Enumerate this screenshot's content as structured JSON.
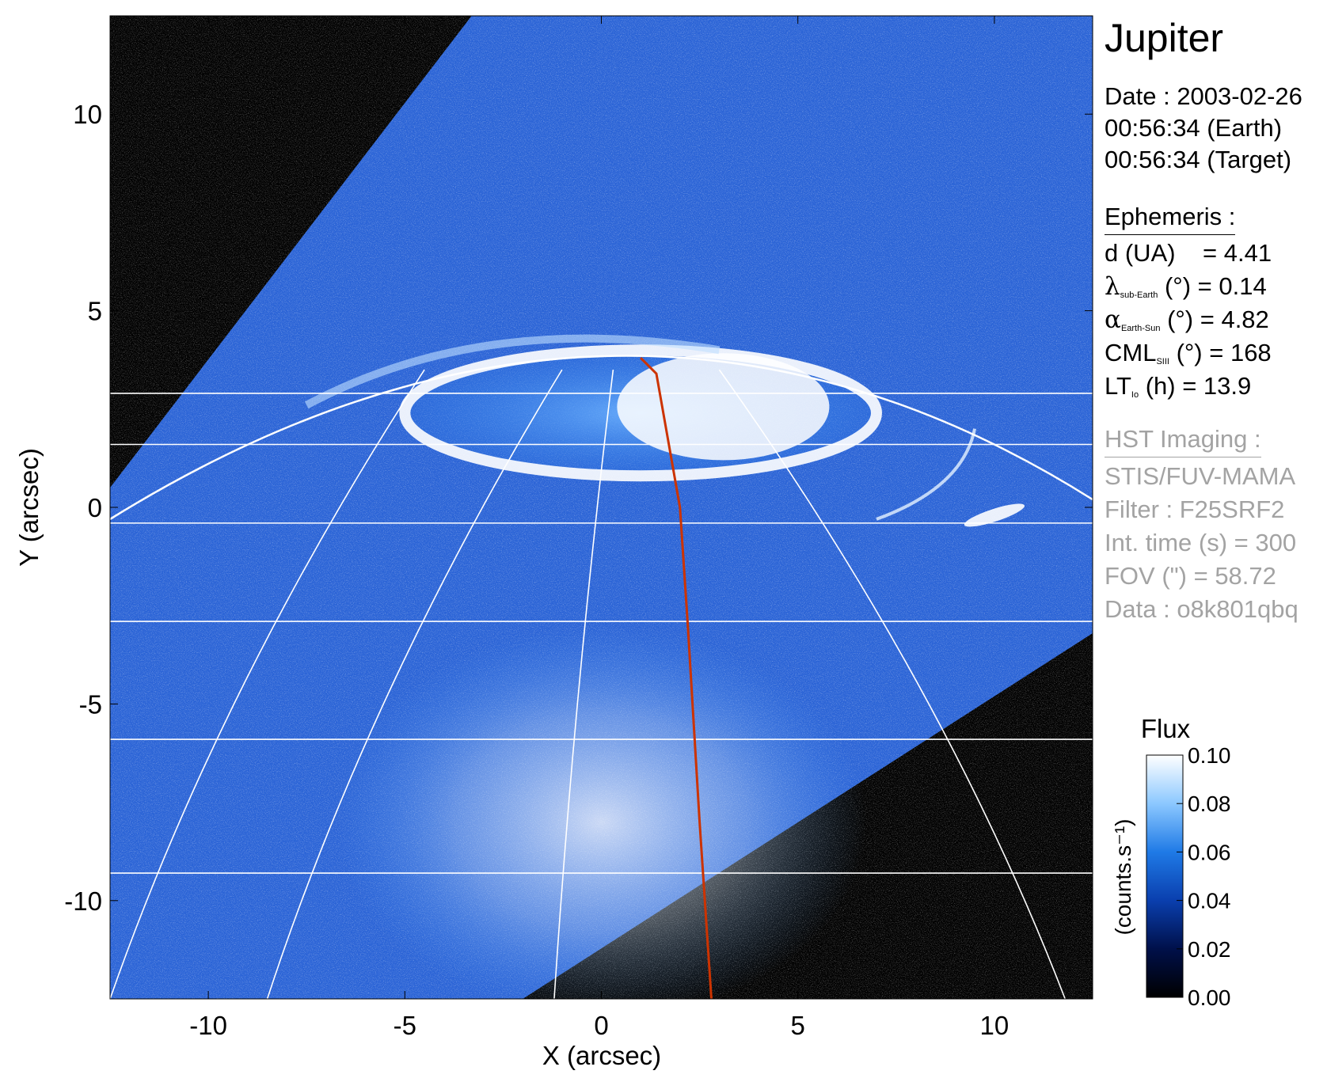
{
  "info": {
    "title": "Jupiter",
    "date_line": "Date : 2003-02-26",
    "time_earth": "00:56:34 (Earth)",
    "time_target": "00:56:34 (Target)",
    "ephemeris_heading": "Ephemeris :",
    "ephemeris": [
      {
        "symbol": "d",
        "sub": "",
        "unit": " (UA)",
        "value": "    = 4.41"
      },
      {
        "symbol": "λ",
        "sub": "sub-Earth",
        "unit": " (°)",
        "value": " = 0.14"
      },
      {
        "symbol": "α",
        "sub": "Earth-Sun",
        "unit": " (°)",
        "value": " = 4.82"
      },
      {
        "symbol": "CML",
        "sub": "SIII",
        "unit": " (°)",
        "value": " = 168"
      },
      {
        "symbol": "LT",
        "sub": "Io",
        "unit": " (h)",
        "value": " = 13.9"
      }
    ],
    "imaging_heading": "HST Imaging :",
    "imaging": [
      "STIS/FUV-MAMA",
      "Filter : F25SRF2",
      "Int. time (s) = 300",
      "FOV (\") = 58.72",
      "Data : o8k801qbq"
    ]
  },
  "colorbar": {
    "title": "Flux",
    "label": "(counts.s⁻¹)",
    "ticks": [
      "0.00",
      "0.02",
      "0.04",
      "0.06",
      "0.08",
      "0.10"
    ],
    "range": [
      0.0,
      0.1
    ],
    "colors": [
      "#000000",
      "#00104a",
      "#0a3fae",
      "#1f7ae6",
      "#8cc8ff",
      "#ffffff"
    ]
  },
  "chart_data": {
    "type": "heatmap",
    "title": "Jupiter",
    "xlabel": "X (arcsec)",
    "ylabel": "Y (arcsec)",
    "xlim": [
      -12.5,
      12.5
    ],
    "ylim": [
      -12.5,
      12.5
    ],
    "xticks": [
      -10,
      -5,
      0,
      5,
      10
    ],
    "yticks": [
      10,
      5,
      0,
      -5,
      -10
    ],
    "xtick_labels": [
      "-10",
      "-5",
      "0",
      "5",
      "10"
    ],
    "ytick_labels": [
      "10",
      "5",
      "0",
      "-5",
      "-10"
    ],
    "value_label": "Flux (counts.s⁻¹)",
    "value_range": [
      0.0,
      0.1
    ],
    "image_footprint": [
      [
        -12.5,
        0.5
      ],
      [
        -3.3,
        12.5
      ],
      [
        12.5,
        12.5
      ],
      [
        12.5,
        -3.2
      ],
      [
        -2.0,
        -12.5
      ],
      [
        -12.5,
        -12.5
      ]
    ],
    "planet_limb": {
      "x_at_edges": [
        -12.5,
        12.5
      ],
      "y_at_edges": [
        -0.3,
        0.2
      ],
      "y_top": 3.9,
      "x_top": 0.5
    },
    "latitude_lines_y": [
      2.9,
      1.6,
      -0.4,
      -2.9,
      -5.9,
      -9.3
    ],
    "meridians": [
      {
        "x_top": -1.0,
        "x_bottom": -8.5
      },
      {
        "x_top": 0.3,
        "x_bottom": -1.2
      },
      {
        "x_top": 3.0,
        "x_bottom": 11.8
      },
      {
        "x_top": -4.5,
        "x_bottom": -12.5
      }
    ],
    "cml_line": {
      "color": "#cc3300",
      "x": [
        1.0,
        1.4,
        2.0,
        2.2,
        2.5,
        2.8
      ],
      "y": [
        3.8,
        3.4,
        0.0,
        -3.0,
        -8.0,
        -12.5
      ]
    },
    "auroral_oval": {
      "center": [
        1.0,
        2.4
      ],
      "semi_axes": [
        6.0,
        1.6
      ],
      "peak_flux": 0.1
    },
    "background_glow": {
      "center": [
        0.0,
        -8.0
      ],
      "flux": 0.09
    }
  }
}
